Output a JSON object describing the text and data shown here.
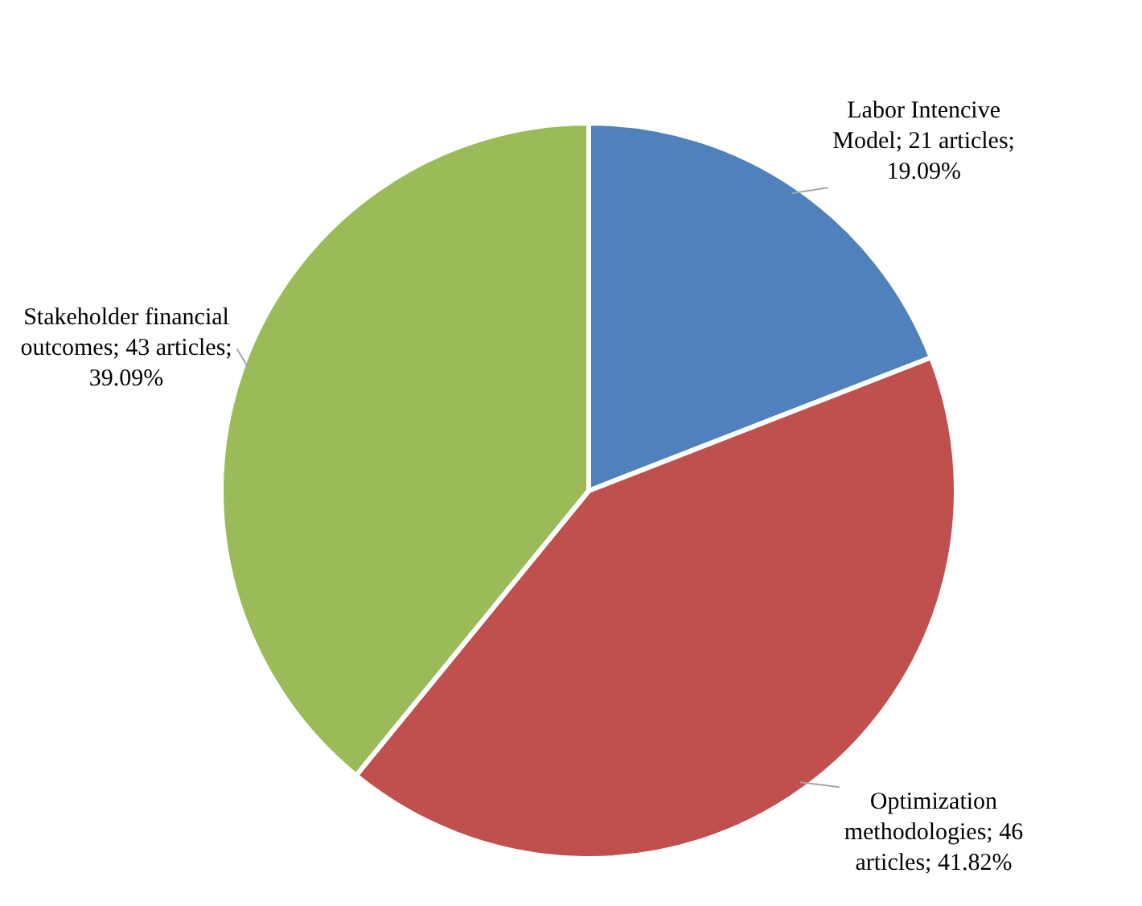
{
  "chart_data": {
    "type": "pie",
    "categories": [
      "Labor Intencive Model",
      "Optimization methodologies",
      "Stakeholder financial outcomes"
    ],
    "values": [
      21,
      46,
      43
    ],
    "colors": [
      "#4f81bd",
      "#c0504d",
      "#9bbb59"
    ],
    "value_labels": [
      "21 articles; 19.09%",
      "46 articles; 41.82%",
      "43 articles; 39.09%"
    ],
    "legend": false
  }
}
